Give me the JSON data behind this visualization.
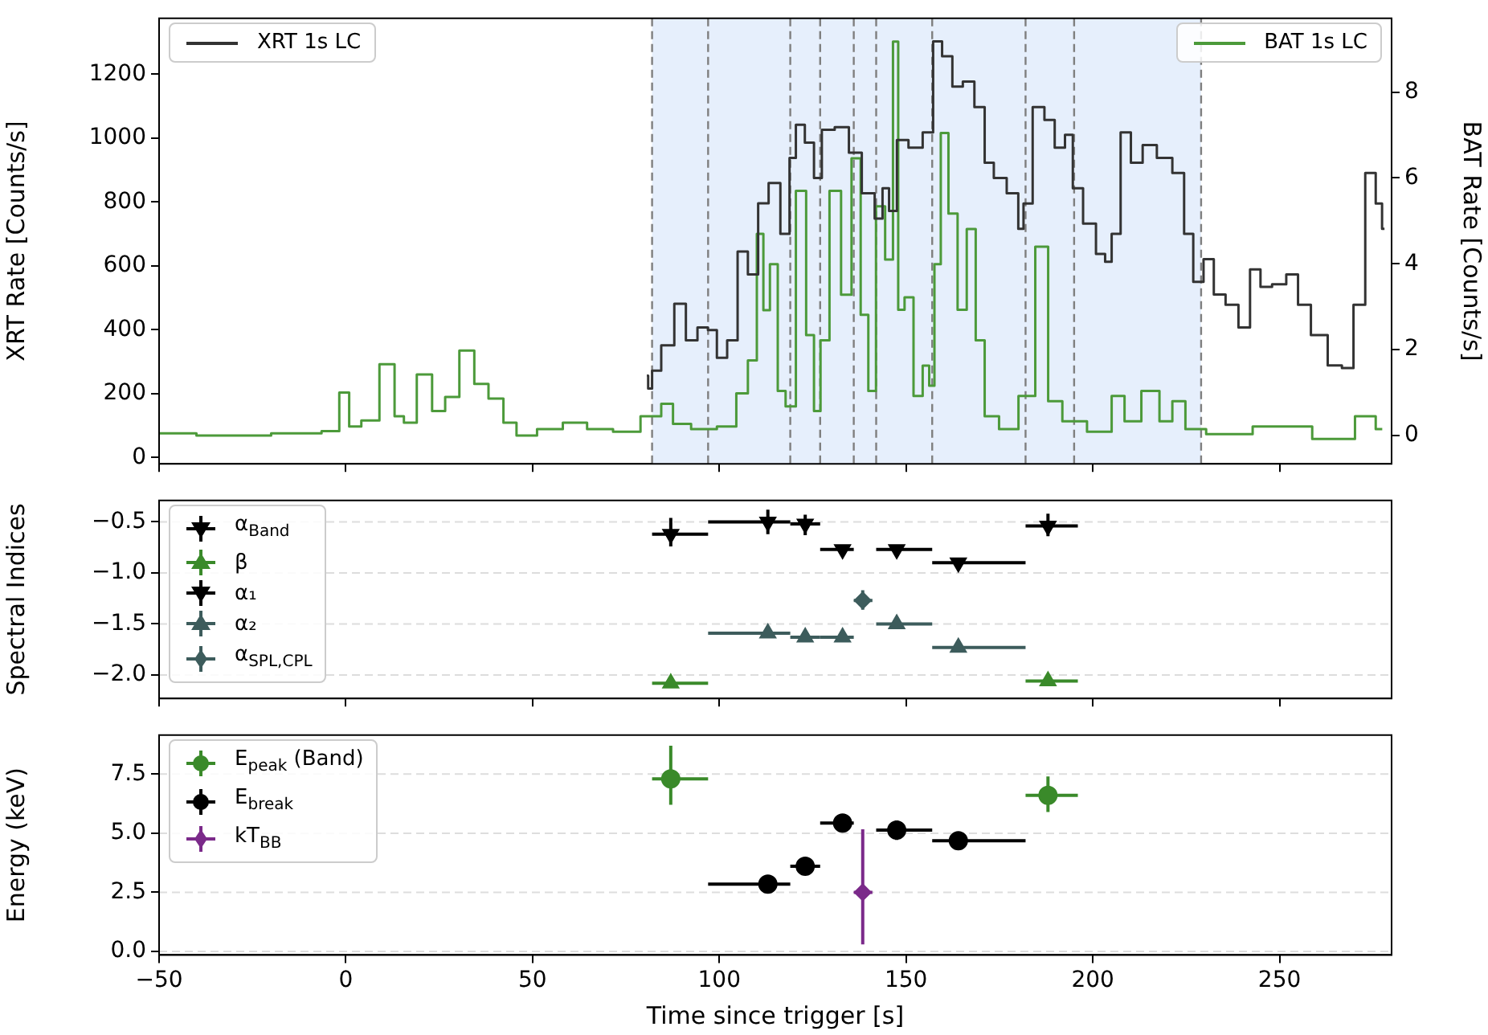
{
  "chart_data": [
    {
      "type": "step",
      "ylabel": "XRT Rate [Counts/s]",
      "y2label": "BAT Rate [Counts/s]",
      "xlim": [
        -50,
        280
      ],
      "xticks": [
        {
          "value": -50,
          "label": null
        },
        {
          "value": 0,
          "label": null
        },
        {
          "value": 50,
          "label": null
        },
        {
          "value": 100,
          "label": null
        },
        {
          "value": 150,
          "label": null
        },
        {
          "value": 200,
          "label": null
        },
        {
          "value": 250,
          "label": null
        }
      ],
      "ylim": [
        -20,
        1375
      ],
      "yticks": [
        0,
        200,
        400,
        600,
        800,
        1000,
        1200
      ],
      "y2lim": [
        -0.66,
        9.72
      ],
      "y2ticks": [
        0,
        2,
        4,
        6,
        8
      ],
      "tick_labels": "y",
      "legend": "top left",
      "bands": [
        {
          "axis": "x",
          "from": 82,
          "to": 229,
          "color": "#e6effc"
        }
      ],
      "ref_lines": [
        {
          "axis": "x",
          "value": 82,
          "color": "#7f7f7f",
          "line_style": "dashed"
        },
        {
          "axis": "x",
          "value": 97,
          "color": "#7f7f7f",
          "line_style": "dashed"
        },
        {
          "axis": "x",
          "value": 119,
          "color": "#7f7f7f",
          "line_style": "dashed"
        },
        {
          "axis": "x",
          "value": 127,
          "color": "#7f7f7f",
          "line_style": "dashed"
        },
        {
          "axis": "x",
          "value": 136,
          "color": "#7f7f7f",
          "line_style": "dashed"
        },
        {
          "axis": "x",
          "value": 142,
          "color": "#7f7f7f",
          "line_style": "dashed"
        },
        {
          "axis": "x",
          "value": 157,
          "color": "#7f7f7f",
          "line_style": "dashed"
        },
        {
          "axis": "x",
          "value": 182,
          "color": "#7f7f7f",
          "line_style": "dashed"
        },
        {
          "axis": "x",
          "value": 195,
          "color": "#7f7f7f",
          "line_style": "dashed"
        },
        {
          "axis": "x",
          "value": 229,
          "color": "#7f7f7f",
          "line_style": "dashed"
        }
      ],
      "series": [
        {
          "name": "XRT 1s LC",
          "color": "#333333",
          "x": [
            80.6,
            81.3,
            82.7,
            86.2,
            89.7,
            92.4,
            95.9,
            98,
            100.7,
            103.5,
            106.3,
            109,
            111.8,
            114.6,
            118.1,
            119.5,
            121.5,
            124.3,
            126.4,
            128.5,
            133.3,
            136.1,
            140.2,
            143,
            144.4,
            146.5,
            148.6,
            152.7,
            156.2,
            158.3,
            161,
            163.8,
            166.6,
            170,
            172.1,
            174.9,
            179,
            181.1,
            181.8,
            186,
            188.1,
            191.5,
            193.6,
            195.7,
            199.1,
            202.6,
            204,
            206.1,
            208.8,
            211.6,
            215.1,
            219.2,
            223.4,
            225.5,
            228.3,
            231,
            233.8,
            237.3,
            240.7,
            243.5,
            246.3,
            249.7,
            253.9,
            256,
            260.8,
            265,
            268.4,
            271.2,
            274.7,
            276.8,
            278.1
          ],
          "values": [
            256,
            216,
            272,
            351,
            481,
            367,
            407,
            399,
            312,
            367,
            645,
            573,
            796,
            859,
            700,
            938,
            1042,
            986,
            875,
            1026,
            1034,
            954,
            827,
            748,
            843,
            772,
            994,
            970,
            1018,
            1303,
            1256,
            1161,
            1177,
            1097,
            923,
            875,
            827,
            716,
            795,
            1097,
            1057,
            970,
            1010,
            843,
            732,
            637,
            613,
            700,
            1018,
            923,
            978,
            938,
            891,
            700,
            550,
            621,
            510,
            478,
            407,
            589,
            534,
            542,
            573,
            478,
            383,
            288,
            280,
            478,
            891,
            795,
            716
          ]
        },
        {
          "name": "BAT 1s LC",
          "color": "#4c9a3a",
          "axis": "y2",
          "x": [
            -50,
            -30,
            -10,
            -3,
            -0.5,
            2.3,
            6,
            12,
            14.1,
            17,
            21,
            25.2,
            28,
            32.8,
            36,
            40.4,
            44,
            47.4,
            55,
            61.2,
            68,
            75.1,
            82.7,
            86.2,
            89,
            95.9,
            102.8,
            106.3,
            109,
            111.1,
            112.5,
            114.6,
            116.7,
            118.8,
            122.2,
            124.3,
            126.4,
            127.8,
            131.2,
            134,
            136.8,
            138.9,
            140.9,
            143,
            145.8,
            147.2,
            148.6,
            150.6,
            153.4,
            155.5,
            156.9,
            158.3,
            160.3,
            162.4,
            165.2,
            167.3,
            170,
            172.1,
            177.7,
            182.5,
            186.7,
            189.4,
            194.3,
            202.6,
            207.5,
            209.5,
            216.5,
            219.2,
            223.4,
            226.2,
            234.5,
            251.1,
            266.4,
            274,
            277.5
          ],
          "values": [
            0.05,
            0,
            0.05,
            0.1,
            1.0,
            0.21,
            0.35,
            1.66,
            0.45,
            0.3,
            1.42,
            0.57,
            0.9,
            1.98,
            1.2,
            0.86,
            0.3,
            0,
            0.15,
            0.3,
            0.15,
            0.09,
            0.45,
            0.74,
            0.27,
            0.15,
            0.21,
            0.98,
            1.75,
            4.7,
            2.92,
            3.99,
            1.04,
            0.68,
            5.7,
            2.34,
            0.57,
            2.22,
            5.7,
            3.28,
            6.46,
            2.81,
            1.04,
            5.34,
            4.1,
            9.18,
            2.93,
            3.22,
            0.92,
            1.63,
            1.16,
            3.99,
            7.05,
            5.17,
            2.93,
            4.81,
            2.22,
            0.45,
            0.15,
            0.92,
            4.4,
            0.8,
            0.33,
            0.09,
            0.92,
            0.33,
            1.04,
            0.33,
            0.8,
            0.15,
            0.03,
            0.21,
            -0.08,
            0.45,
            0.15
          ]
        }
      ]
    },
    {
      "type": "scatter",
      "ylabel": "Spectral Indices",
      "xlim": [
        -50,
        280
      ],
      "xticks": [
        {
          "value": -50,
          "label": null
        },
        {
          "value": 0,
          "label": null
        },
        {
          "value": 50,
          "label": null
        },
        {
          "value": 100,
          "label": null
        },
        {
          "value": 150,
          "label": null
        },
        {
          "value": 200,
          "label": null
        },
        {
          "value": 250,
          "label": null
        }
      ],
      "ylim": [
        -2.23,
        -0.29
      ],
      "yticks": [
        {
          "value": -0.5,
          "label": "−0.5"
        },
        {
          "value": -1.0,
          "label": "−1.0"
        },
        {
          "value": -1.5,
          "label": "−1.5"
        },
        {
          "value": -2.0,
          "label": "−2.0"
        }
      ],
      "tick_labels": "y",
      "grid": "y",
      "legend": "top left",
      "series": [
        {
          "name": "α$_{Band}$",
          "color": "#000000",
          "marker": "triangle_down",
          "x": [
            87,
            113,
            123,
            188
          ],
          "values": [
            -0.62,
            -0.5,
            -0.52,
            -0.54
          ],
          "xerrors": [
            [
              82,
              97
            ],
            [
              97,
              119
            ],
            [
              119,
              127
            ],
            [
              182,
              196
            ]
          ],
          "errors": [
            [
              -0.74,
              -0.46
            ],
            [
              -0.62,
              -0.38
            ],
            [
              -0.63,
              -0.43
            ],
            [
              -0.64,
              -0.42
            ]
          ]
        },
        {
          "name": "β",
          "color": "#3a8a2a",
          "marker": "triangle",
          "x": [
            87,
            188
          ],
          "values": [
            -2.08,
            -2.06
          ],
          "xerrors": [
            [
              82,
              97
            ],
            [
              182,
              196
            ]
          ]
        },
        {
          "name": "α₁",
          "color": "#000000",
          "marker": "triangle_down",
          "x": [
            133,
            147.5,
            164
          ],
          "values": [
            -0.77,
            -0.77,
            -0.9
          ],
          "xerrors": [
            [
              127,
              136
            ],
            [
              142,
              157
            ],
            [
              157,
              182
            ]
          ]
        },
        {
          "name": "α₂",
          "color": "#3d5c5c",
          "marker": "triangle",
          "x": [
            113,
            123,
            133,
            147.5,
            164
          ],
          "values": [
            -1.59,
            -1.63,
            -1.63,
            -1.5,
            -1.73
          ],
          "xerrors": [
            [
              97,
              119
            ],
            [
              119,
              127
            ],
            [
              127,
              136
            ],
            [
              142,
              157
            ],
            [
              157,
              182
            ]
          ]
        },
        {
          "name": "α$_{SPL,CPL}$",
          "color": "#3d5c5c",
          "marker": "diamond",
          "x": [
            138.4
          ],
          "values": [
            -1.27
          ],
          "xerrors": [
            [
              136,
              141
            ]
          ],
          "errors": [
            [
              -1.36,
              -1.17
            ]
          ]
        }
      ]
    },
    {
      "type": "scatter",
      "ylabel": "Energy (keV)",
      "xlabel": "Time since trigger [s]",
      "xlim": [
        -50,
        280
      ],
      "xticks": [
        {
          "value": -50,
          "label": "−50"
        },
        0,
        50,
        100,
        150,
        200,
        250
      ],
      "ylim": [
        -0.15,
        9.15
      ],
      "yticks": [
        {
          "value": 0,
          "label": "0.0"
        },
        2.5,
        {
          "value": 5,
          "label": "5.0"
        },
        7.5
      ],
      "grid": "y",
      "legend": "top left",
      "series": [
        {
          "name": "E$_{peak}$ (Band)",
          "color": "#3a8a2a",
          "marker": "circle",
          "x": [
            87,
            188
          ],
          "values": [
            7.3,
            6.6
          ],
          "xerrors": [
            [
              82,
              97
            ],
            [
              182,
              196
            ]
          ],
          "errors": [
            [
              6.2,
              8.7
            ],
            [
              5.9,
              7.4
            ]
          ]
        },
        {
          "name": "E$_{break}$",
          "color": "#000000",
          "marker": "circle",
          "x": [
            113,
            123,
            133,
            147.5,
            164
          ],
          "values": [
            2.85,
            3.6,
            5.43,
            5.13,
            4.68
          ],
          "xerrors": [
            [
              97,
              119
            ],
            [
              119,
              127
            ],
            [
              127,
              136
            ],
            [
              142,
              157
            ],
            [
              157,
              182
            ]
          ],
          "errors": [
            null,
            null,
            [
              5.05,
              5.8
            ],
            [
              4.72,
              5.54
            ],
            null
          ]
        },
        {
          "name": "kT$_{BB}$",
          "color": "#7b2a8a",
          "marker": "diamond",
          "x": [
            138.4
          ],
          "values": [
            2.5
          ],
          "xerrors": [
            [
              136,
              141
            ]
          ],
          "errors": [
            [
              0.3,
              5.17
            ]
          ]
        }
      ]
    }
  ]
}
